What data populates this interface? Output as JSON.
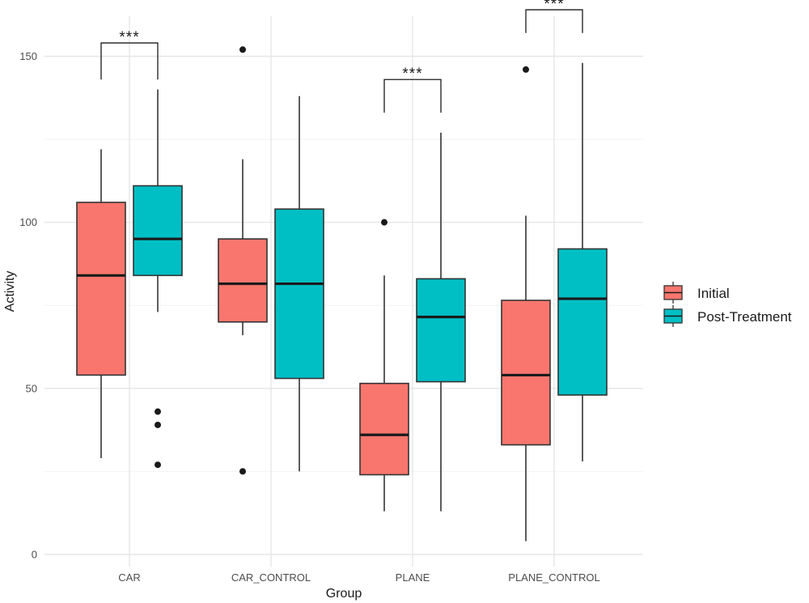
{
  "chart_data": {
    "type": "boxplot",
    "title": "",
    "xlabel": "Group",
    "ylabel": "Activity",
    "ylim": [
      0,
      150
    ],
    "yticks": [
      0,
      50,
      100,
      150
    ],
    "categories": [
      "CAR",
      "CAR_CONTROL",
      "PLANE",
      "PLANE_CONTROL"
    ],
    "legend": {
      "position": "right",
      "entries": [
        "Initial",
        "Post-Treatment"
      ]
    },
    "series": [
      {
        "name": "Initial",
        "color": "#F8766D",
        "boxes": [
          {
            "category": "CAR",
            "whisker_low": 29,
            "q1": 54,
            "median": 84,
            "q3": 106,
            "whisker_high": 122,
            "outliers": []
          },
          {
            "category": "CAR_CONTROL",
            "whisker_low": 66,
            "q1": 70,
            "median": 81.5,
            "q3": 95,
            "whisker_high": 119,
            "outliers": [
              25,
              152
            ]
          },
          {
            "category": "PLANE",
            "whisker_low": 13,
            "q1": 24,
            "median": 36,
            "q3": 51.5,
            "whisker_high": 84,
            "outliers": [
              100
            ]
          },
          {
            "category": "PLANE_CONTROL",
            "whisker_low": 4,
            "q1": 33,
            "median": 54,
            "q3": 76.5,
            "whisker_high": 102,
            "outliers": [
              146
            ]
          }
        ]
      },
      {
        "name": "Post-Treatment",
        "color": "#00BFC4",
        "boxes": [
          {
            "category": "CAR",
            "whisker_low": 73,
            "q1": 84,
            "median": 95,
            "q3": 111,
            "whisker_high": 140,
            "outliers": [
              27,
              39,
              43
            ]
          },
          {
            "category": "CAR_CONTROL",
            "whisker_low": 25,
            "q1": 53,
            "median": 81.5,
            "q3": 104,
            "whisker_high": 138,
            "outliers": []
          },
          {
            "category": "PLANE",
            "whisker_low": 13,
            "q1": 52,
            "median": 71.5,
            "q3": 83,
            "whisker_high": 127,
            "outliers": []
          },
          {
            "category": "PLANE_CONTROL",
            "whisker_low": 28,
            "q1": 48,
            "median": 77,
            "q3": 92,
            "whisker_high": 148,
            "outliers": []
          }
        ]
      }
    ],
    "annotations": [
      {
        "category": "CAR",
        "label": "***",
        "bracket_low": 143,
        "bracket_high": 154
      },
      {
        "category": "PLANE",
        "label": "***",
        "bracket_low": 133,
        "bracket_high": 143
      },
      {
        "category": "PLANE_CONTROL",
        "label": "***",
        "bracket_low": 157,
        "bracket_high": 164
      }
    ]
  }
}
